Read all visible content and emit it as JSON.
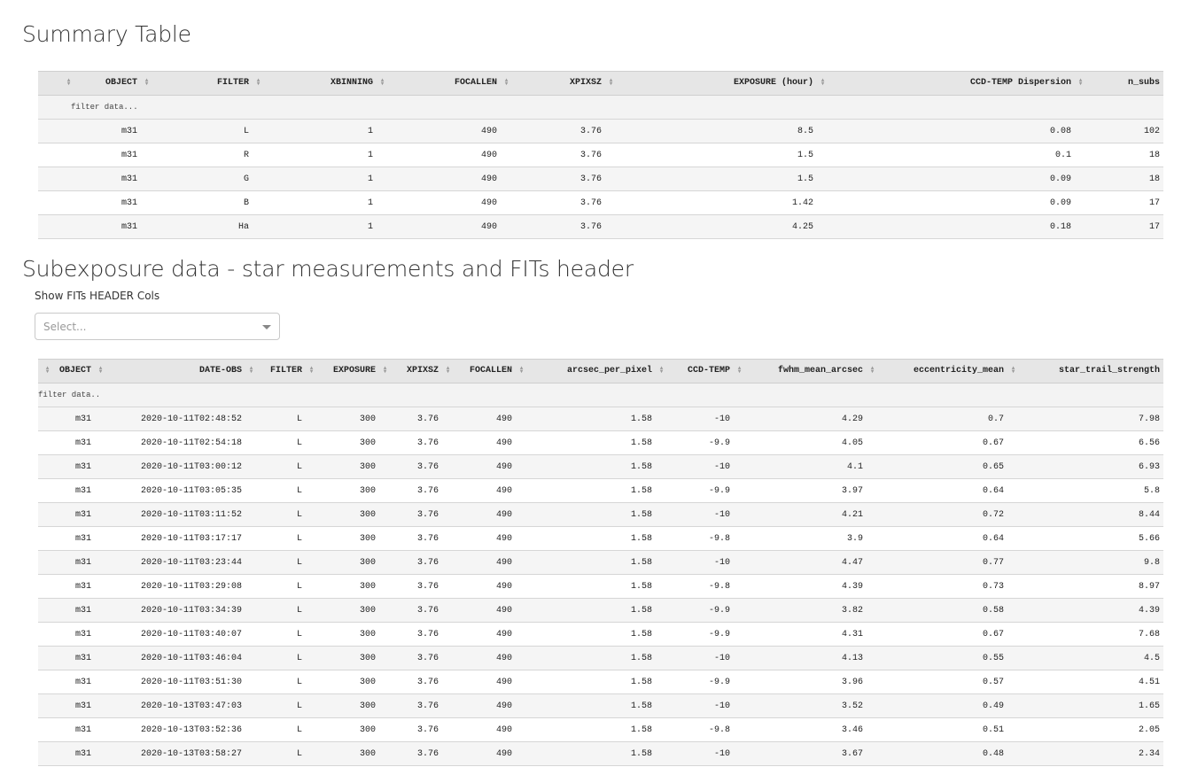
{
  "summary": {
    "title": "Summary Table",
    "filter_placeholder": "filter data...",
    "columns": [
      "",
      "OBJECT",
      "FILTER",
      "XBINNING",
      "FOCALLEN",
      "XPIXSZ",
      "EXPOSURE (hour)",
      "CCD-TEMP Dispersion",
      "n_subs"
    ],
    "rows": [
      [
        "",
        "m31",
        "L",
        "1",
        "490",
        "3.76",
        "8.5",
        "0.08",
        "102"
      ],
      [
        "",
        "m31",
        "R",
        "1",
        "490",
        "3.76",
        "1.5",
        "0.1",
        "18"
      ],
      [
        "",
        "m31",
        "G",
        "1",
        "490",
        "3.76",
        "1.5",
        "0.09",
        "18"
      ],
      [
        "",
        "m31",
        "B",
        "1",
        "490",
        "3.76",
        "1.42",
        "0.09",
        "17"
      ],
      [
        "",
        "m31",
        "Ha",
        "1",
        "490",
        "3.76",
        "4.25",
        "0.18",
        "17"
      ]
    ]
  },
  "subexposure": {
    "title": "Subexposure data - star measurements and FITs header",
    "select_label": "Show FITs HEADER Cols",
    "select_placeholder": "Select...",
    "filter_placeholder": "filter data..",
    "columns": [
      "",
      "OBJECT",
      "DATE-OBS",
      "FILTER",
      "EXPOSURE",
      "XPIXSZ",
      "FOCALLEN",
      "arcsec_per_pixel",
      "CCD-TEMP",
      "fwhm_mean_arcsec",
      "eccentricity_mean",
      "star_trail_strength"
    ],
    "rows": [
      [
        "",
        "m31",
        "2020-10-11T02:48:52",
        "L",
        "300",
        "3.76",
        "490",
        "1.58",
        "-10",
        "4.29",
        "0.7",
        "7.98"
      ],
      [
        "",
        "m31",
        "2020-10-11T02:54:18",
        "L",
        "300",
        "3.76",
        "490",
        "1.58",
        "-9.9",
        "4.05",
        "0.67",
        "6.56"
      ],
      [
        "",
        "m31",
        "2020-10-11T03:00:12",
        "L",
        "300",
        "3.76",
        "490",
        "1.58",
        "-10",
        "4.1",
        "0.65",
        "6.93"
      ],
      [
        "",
        "m31",
        "2020-10-11T03:05:35",
        "L",
        "300",
        "3.76",
        "490",
        "1.58",
        "-9.9",
        "3.97",
        "0.64",
        "5.8"
      ],
      [
        "",
        "m31",
        "2020-10-11T03:11:52",
        "L",
        "300",
        "3.76",
        "490",
        "1.58",
        "-10",
        "4.21",
        "0.72",
        "8.44"
      ],
      [
        "",
        "m31",
        "2020-10-11T03:17:17",
        "L",
        "300",
        "3.76",
        "490",
        "1.58",
        "-9.8",
        "3.9",
        "0.64",
        "5.66"
      ],
      [
        "",
        "m31",
        "2020-10-11T03:23:44",
        "L",
        "300",
        "3.76",
        "490",
        "1.58",
        "-10",
        "4.47",
        "0.77",
        "9.8"
      ],
      [
        "",
        "m31",
        "2020-10-11T03:29:08",
        "L",
        "300",
        "3.76",
        "490",
        "1.58",
        "-9.8",
        "4.39",
        "0.73",
        "8.97"
      ],
      [
        "",
        "m31",
        "2020-10-11T03:34:39",
        "L",
        "300",
        "3.76",
        "490",
        "1.58",
        "-9.9",
        "3.82",
        "0.58",
        "4.39"
      ],
      [
        "",
        "m31",
        "2020-10-11T03:40:07",
        "L",
        "300",
        "3.76",
        "490",
        "1.58",
        "-9.9",
        "4.31",
        "0.67",
        "7.68"
      ],
      [
        "",
        "m31",
        "2020-10-11T03:46:04",
        "L",
        "300",
        "3.76",
        "490",
        "1.58",
        "-10",
        "4.13",
        "0.55",
        "4.5"
      ],
      [
        "",
        "m31",
        "2020-10-11T03:51:30",
        "L",
        "300",
        "3.76",
        "490",
        "1.58",
        "-9.9",
        "3.96",
        "0.57",
        "4.51"
      ],
      [
        "",
        "m31",
        "2020-10-13T03:47:03",
        "L",
        "300",
        "3.76",
        "490",
        "1.58",
        "-10",
        "3.52",
        "0.49",
        "1.65"
      ],
      [
        "",
        "m31",
        "2020-10-13T03:52:36",
        "L",
        "300",
        "3.76",
        "490",
        "1.58",
        "-9.8",
        "3.46",
        "0.51",
        "2.05"
      ],
      [
        "",
        "m31",
        "2020-10-13T03:58:27",
        "L",
        "300",
        "3.76",
        "490",
        "1.58",
        "-10",
        "3.67",
        "0.48",
        "2.34"
      ]
    ]
  }
}
